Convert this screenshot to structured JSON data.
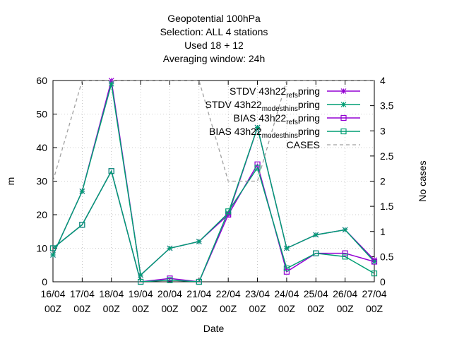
{
  "chart_data": {
    "type": "line",
    "title_lines": [
      "Geopotential 100hPa",
      "Selection: ALL       4 stations",
      "Used  18  + 12",
      "Averaging window: 24h"
    ],
    "xlabel": "Date",
    "ylabel": "m",
    "y2label": "No cases",
    "ylim": [
      0,
      60
    ],
    "y2lim": [
      0,
      4
    ],
    "yticks": [
      "0",
      "10",
      "20",
      "30",
      "40",
      "50",
      "60"
    ],
    "y2ticks": [
      "0",
      "0.5",
      "1",
      "1.5",
      "2",
      "2.5",
      "3",
      "3.5",
      "4"
    ],
    "categories": [
      [
        "16/04",
        "00Z"
      ],
      [
        "17/04",
        "00Z"
      ],
      [
        "18/04",
        "00Z"
      ],
      [
        "19/04",
        "00Z"
      ],
      [
        "20/04",
        "00Z"
      ],
      [
        "21/04",
        "00Z"
      ],
      [
        "22/04",
        "00Z"
      ],
      [
        "23/04",
        "00Z"
      ],
      [
        "24/04",
        "00Z"
      ],
      [
        "25/04",
        "00Z"
      ],
      [
        "26/04",
        "00Z"
      ],
      [
        "27/04",
        "00Z"
      ]
    ],
    "legend_position": "top-right",
    "series": [
      {
        "name": "STDV 43h22_ref_spring",
        "legend_parts": [
          "STDV 43h22",
          "ref",
          "s",
          "pring"
        ],
        "color": "#9400d3",
        "marker": "star",
        "axis": "y1",
        "values": [
          8,
          27,
          60,
          2,
          10,
          12,
          20,
          46,
          10,
          14,
          15.5,
          6.5
        ]
      },
      {
        "name": "STDV 43h22_modesthin_spring",
        "legend_parts": [
          "STDV 43h22",
          "modesthin",
          "s",
          "pring"
        ],
        "color": "#009e73",
        "marker": "star",
        "axis": "y1",
        "values": [
          8,
          27,
          59,
          2,
          10,
          12,
          20.5,
          46,
          10,
          14,
          15.5,
          6
        ]
      },
      {
        "name": "BIAS 43h22_ref_spring",
        "legend_parts": [
          "BIAS 43h22",
          "ref",
          "s",
          "pring"
        ],
        "color": "#9400d3",
        "marker": "square",
        "axis": "y1",
        "values": [
          10,
          17,
          33,
          0,
          1,
          0,
          20,
          35,
          3,
          8.5,
          8.5,
          6
        ]
      },
      {
        "name": "BIAS 43h22_modesthin_spring",
        "legend_parts": [
          "BIAS 43h22",
          "modesthin",
          "s",
          "pring"
        ],
        "color": "#009e73",
        "marker": "square",
        "axis": "y1",
        "values": [
          10,
          17,
          33,
          0,
          0.5,
          0,
          21,
          34,
          4,
          8.5,
          7.5,
          2.5
        ]
      },
      {
        "name": "CASES",
        "legend_parts": [
          "CASES"
        ],
        "color": "#a0a0a0",
        "marker": "none",
        "dashed": true,
        "axis": "y2",
        "values": [
          2,
          4,
          4,
          4,
          4,
          4,
          2,
          2,
          4,
          4,
          4,
          4
        ]
      }
    ]
  }
}
